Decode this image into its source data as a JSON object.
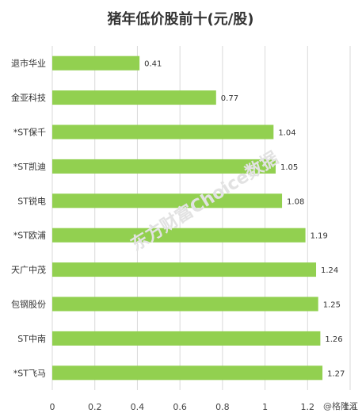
{
  "chart_data": {
    "type": "bar",
    "orientation": "horizontal",
    "title": "猪年低价股前十(元/股)",
    "categories": [
      "退市华业",
      "金亚科技",
      "*ST保千",
      "*ST凯迪",
      "ST锐电",
      "*ST欧浦",
      "天广中茂",
      "包钢股份",
      "ST中南",
      "*ST飞马"
    ],
    "values": [
      0.41,
      0.77,
      1.04,
      1.05,
      1.08,
      1.19,
      1.24,
      1.25,
      1.26,
      1.27
    ],
    "value_labels": [
      "0.41",
      "0.77",
      "1.04",
      "1.05",
      "1.08",
      "1.19",
      "1.24",
      "1.25",
      "1.26",
      "1.27"
    ],
    "xlim": [
      0,
      1.4
    ],
    "xticks": [
      "0",
      "0.2",
      "0.4",
      "0.6",
      "0.8",
      "1",
      "1.2",
      "1.4"
    ],
    "grid": true,
    "bar_color": "#92d050",
    "grid_color": "#d9d9d9"
  },
  "watermark": "东方财富Choice数据",
  "credit": "@格隆汇"
}
